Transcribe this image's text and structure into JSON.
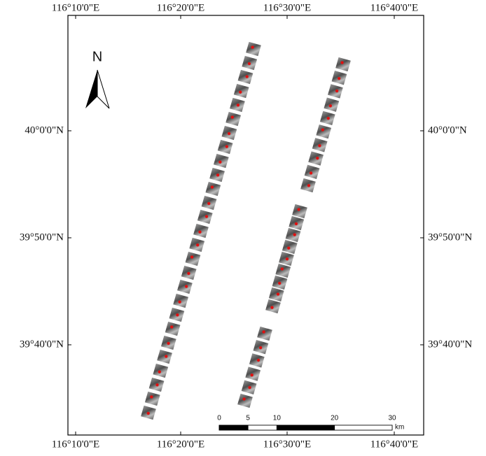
{
  "map": {
    "top_labels": [
      "116°10'0\"E",
      "116°20'0\"E",
      "116°30'0\"E",
      "116°40'0\"E"
    ],
    "bottom_labels": [
      "116°10'0\"E",
      "116°20'0\"E",
      "116°30'0\"E",
      "116°40'0\"E"
    ],
    "left_labels": [
      "40°0'0\"N",
      "39°50'0\"N",
      "39°40'0\"N"
    ],
    "right_labels": [
      "40°0'0\"N",
      "39°50'0\"N",
      "39°40'0\"N"
    ],
    "north": "N",
    "scale_bar": {
      "ticks": [
        0,
        5,
        10,
        20,
        30
      ],
      "unit": "km"
    }
  }
}
